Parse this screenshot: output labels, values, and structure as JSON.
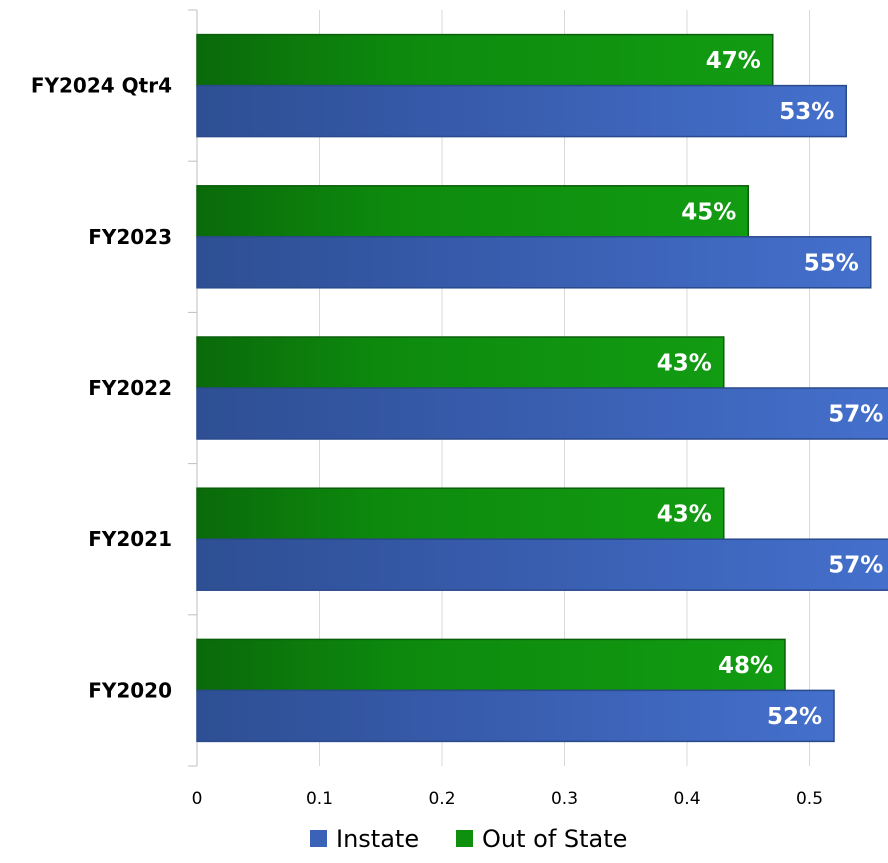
{
  "chart_data": {
    "type": "bar",
    "orientation": "horizontal",
    "categories": [
      "FY2024 Qtr4",
      "FY2023",
      "FY2022",
      "FY2021",
      "FY2020"
    ],
    "series": [
      {
        "name": "Out of State",
        "values": [
          0.47,
          0.45,
          0.43,
          0.43,
          0.48
        ],
        "labels": [
          "47%",
          "45%",
          "43%",
          "43%",
          "48%"
        ],
        "color": "#0e8f0e"
      },
      {
        "name": "Instate",
        "values": [
          0.53,
          0.55,
          0.57,
          0.57,
          0.52
        ],
        "labels": [
          "53%",
          "55%",
          "57%",
          "57%",
          "52%"
        ],
        "color": "#3a63b8"
      }
    ],
    "xlim": [
      0,
      0.55
    ],
    "xticks": [
      "0",
      "0.1",
      "0.2",
      "0.3",
      "0.4",
      "0.5"
    ],
    "xtick_values": [
      0,
      0.1,
      0.2,
      0.3,
      0.4,
      0.5
    ],
    "grid": true,
    "legend": "bottom",
    "legend_order": [
      "Instate",
      "Out of State"
    ],
    "title": "",
    "xlabel": "",
    "ylabel": ""
  }
}
